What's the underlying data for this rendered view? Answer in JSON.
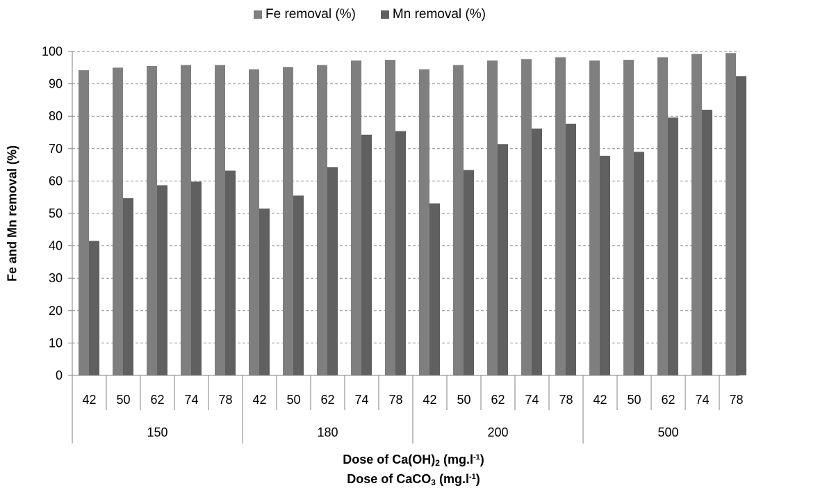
{
  "chart_data": {
    "type": "bar",
    "legend": {
      "position": "top-center"
    },
    "colors": {
      "fe": "#7f7f7f",
      "mn": "#606060",
      "grid": "#8c8c8c",
      "axis": "#7f7f7f"
    },
    "ylim": [
      0,
      100
    ],
    "yticks": [
      0,
      10,
      20,
      30,
      40,
      50,
      60,
      70,
      80,
      90,
      100
    ],
    "grid": "horizontal dashed",
    "ylabel": "Fe and Mn  removal (%)",
    "xlabel_line1": {
      "prefix": "Dose of Ca(OH)",
      "sub": "2",
      "middle": " (mg.l",
      "sup": "-1",
      "suffix": ")"
    },
    "xlabel_line2": {
      "prefix": "Dose of CaCO",
      "sub": "3",
      "middle": " (mg.l",
      "sup": "-1",
      "suffix": ")"
    },
    "groups": [
      {
        "label": "150",
        "categories": [
          "42",
          "50",
          "62",
          "74",
          "78"
        ]
      },
      {
        "label": "180",
        "categories": [
          "42",
          "50",
          "62",
          "74",
          "78"
        ]
      },
      {
        "label": "200",
        "categories": [
          "42",
          "50",
          "62",
          "74",
          "78"
        ]
      },
      {
        "label": "500",
        "categories": [
          "42",
          "50",
          "62",
          "74",
          "78"
        ]
      }
    ],
    "series": [
      {
        "name": "Fe removal (%)",
        "values": [
          94.2,
          95.0,
          95.5,
          95.8,
          95.8,
          94.5,
          95.2,
          95.8,
          97.2,
          97.4,
          94.5,
          95.8,
          97.2,
          97.6,
          98.2,
          97.2,
          97.4,
          98.2,
          99.2,
          99.5
        ]
      },
      {
        "name": "Mn removal (%)",
        "values": [
          41.5,
          54.7,
          58.7,
          59.8,
          63.2,
          51.5,
          55.5,
          64.3,
          74.3,
          75.4,
          53.1,
          63.4,
          71.4,
          76.2,
          77.7,
          67.8,
          69.0,
          79.6,
          82.0,
          92.4
        ]
      }
    ]
  }
}
